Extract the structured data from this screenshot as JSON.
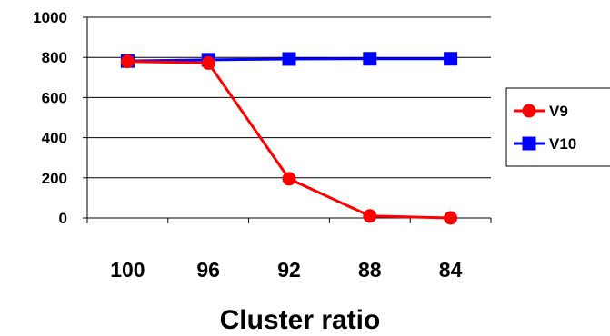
{
  "chart_data": {
    "type": "line",
    "categories": [
      "100",
      "96",
      "92",
      "88",
      "84"
    ],
    "xlabel": "Cluster ratio",
    "ylabel": "",
    "title": "",
    "ylim": [
      0,
      1000
    ],
    "yticks": [
      "0",
      "200",
      "400",
      "600",
      "800",
      "1000"
    ],
    "grid": "horizontal",
    "legend_position": "right",
    "series": [
      {
        "name": "V9",
        "values": [
          780,
          772,
          195,
          10,
          0
        ],
        "color": "#ff0000",
        "marker": "circle"
      },
      {
        "name": "V10",
        "values": [
          782,
          788,
          792,
          793,
          793
        ],
        "color": "#0000ff",
        "marker": "square"
      }
    ]
  }
}
